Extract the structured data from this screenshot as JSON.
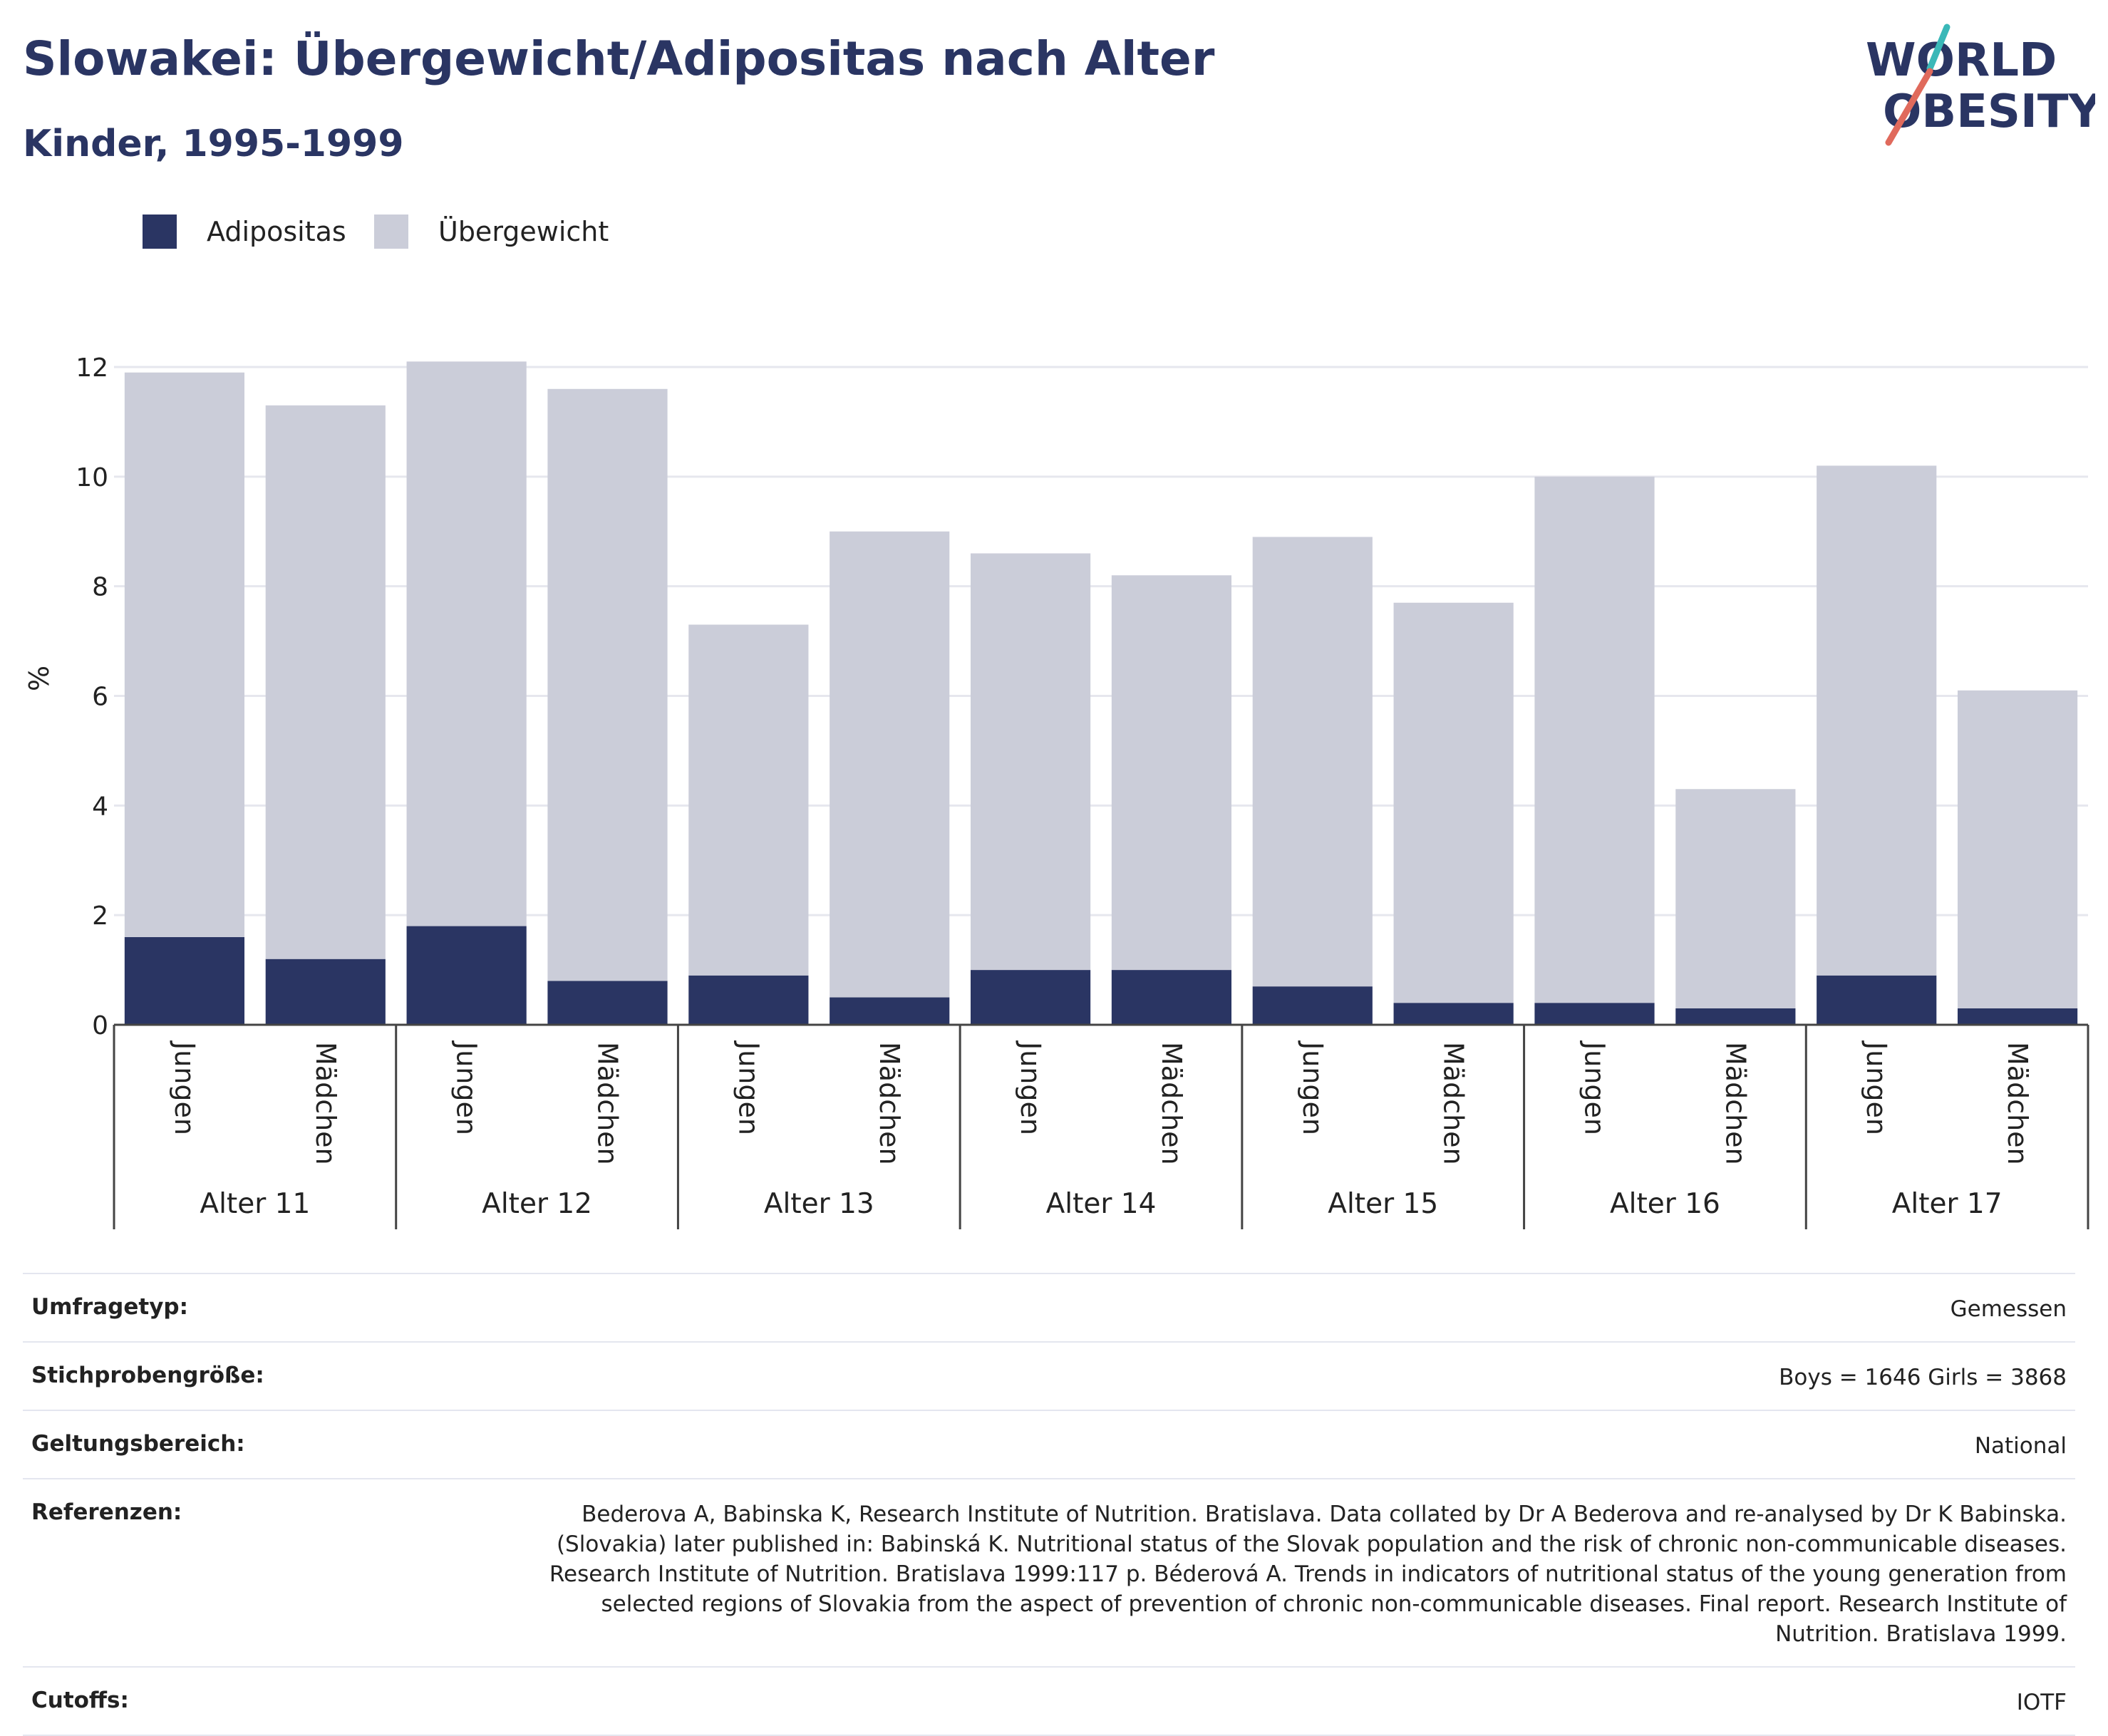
{
  "header": {
    "title": "Slowakei: Übergewicht/Adipositas nach Alter",
    "subtitle": "Kinder, 1995-1999",
    "logo_line1": "WORLD",
    "logo_line2": "OBESITY"
  },
  "legend": [
    {
      "label": "Adipositas",
      "color": "#2a3563"
    },
    {
      "label": "Übergewicht",
      "color": "#cbcdd9"
    }
  ],
  "chart_data": {
    "type": "bar",
    "stacked": true,
    "ylabel": "%",
    "ylim": [
      0,
      12
    ],
    "yticks": [
      0,
      2,
      4,
      6,
      8,
      10,
      12
    ],
    "grid": true,
    "legend_position": "top-left",
    "groups": [
      "Alter 11",
      "Alter 12",
      "Alter 13",
      "Alter 14",
      "Alter 15",
      "Alter 16",
      "Alter 17"
    ],
    "subcategories": [
      "Jungen",
      "Mädchen"
    ],
    "series": [
      {
        "name": "Adipositas",
        "color": "#2a3563",
        "values": [
          1.6,
          1.2,
          1.8,
          0.8,
          0.9,
          0.5,
          1.0,
          1.0,
          0.7,
          0.4,
          0.4,
          0.3,
          0.9,
          0.3
        ]
      },
      {
        "name": "Übergewicht",
        "color": "#cbcdd9",
        "values": [
          10.3,
          10.1,
          10.3,
          10.8,
          6.4,
          8.5,
          7.6,
          7.2,
          8.2,
          7.3,
          9.6,
          4.0,
          9.3,
          5.8
        ]
      }
    ]
  },
  "meta": [
    {
      "label": "Umfragetyp:",
      "value": "Gemessen"
    },
    {
      "label": "Stichprobengröße:",
      "value": "Boys = 1646 Girls = 3868"
    },
    {
      "label": "Geltungsbereich:",
      "value": "National"
    },
    {
      "label": "Referenzen:",
      "value": "Bederova A, Babinska K, Research Institute of Nutrition. Bratislava. Data collated by Dr A Bederova and re-analysed by Dr K Babinska. (Slovakia) later published in: Babinská K. Nutritional status of the Slovak population and the risk of chronic non-communicable diseases. Research Institute of Nutrition. Bratislava 1999:117 p. Béderová A. Trends in indicators of nutritional status of the young generation from selected regions of Slovakia from the aspect of prevention of chronic non-communicable diseases. Final report. Research Institute of Nutrition. Bratislava 1999."
    },
    {
      "label": "Cutoffs:",
      "value": "IOTF"
    }
  ]
}
